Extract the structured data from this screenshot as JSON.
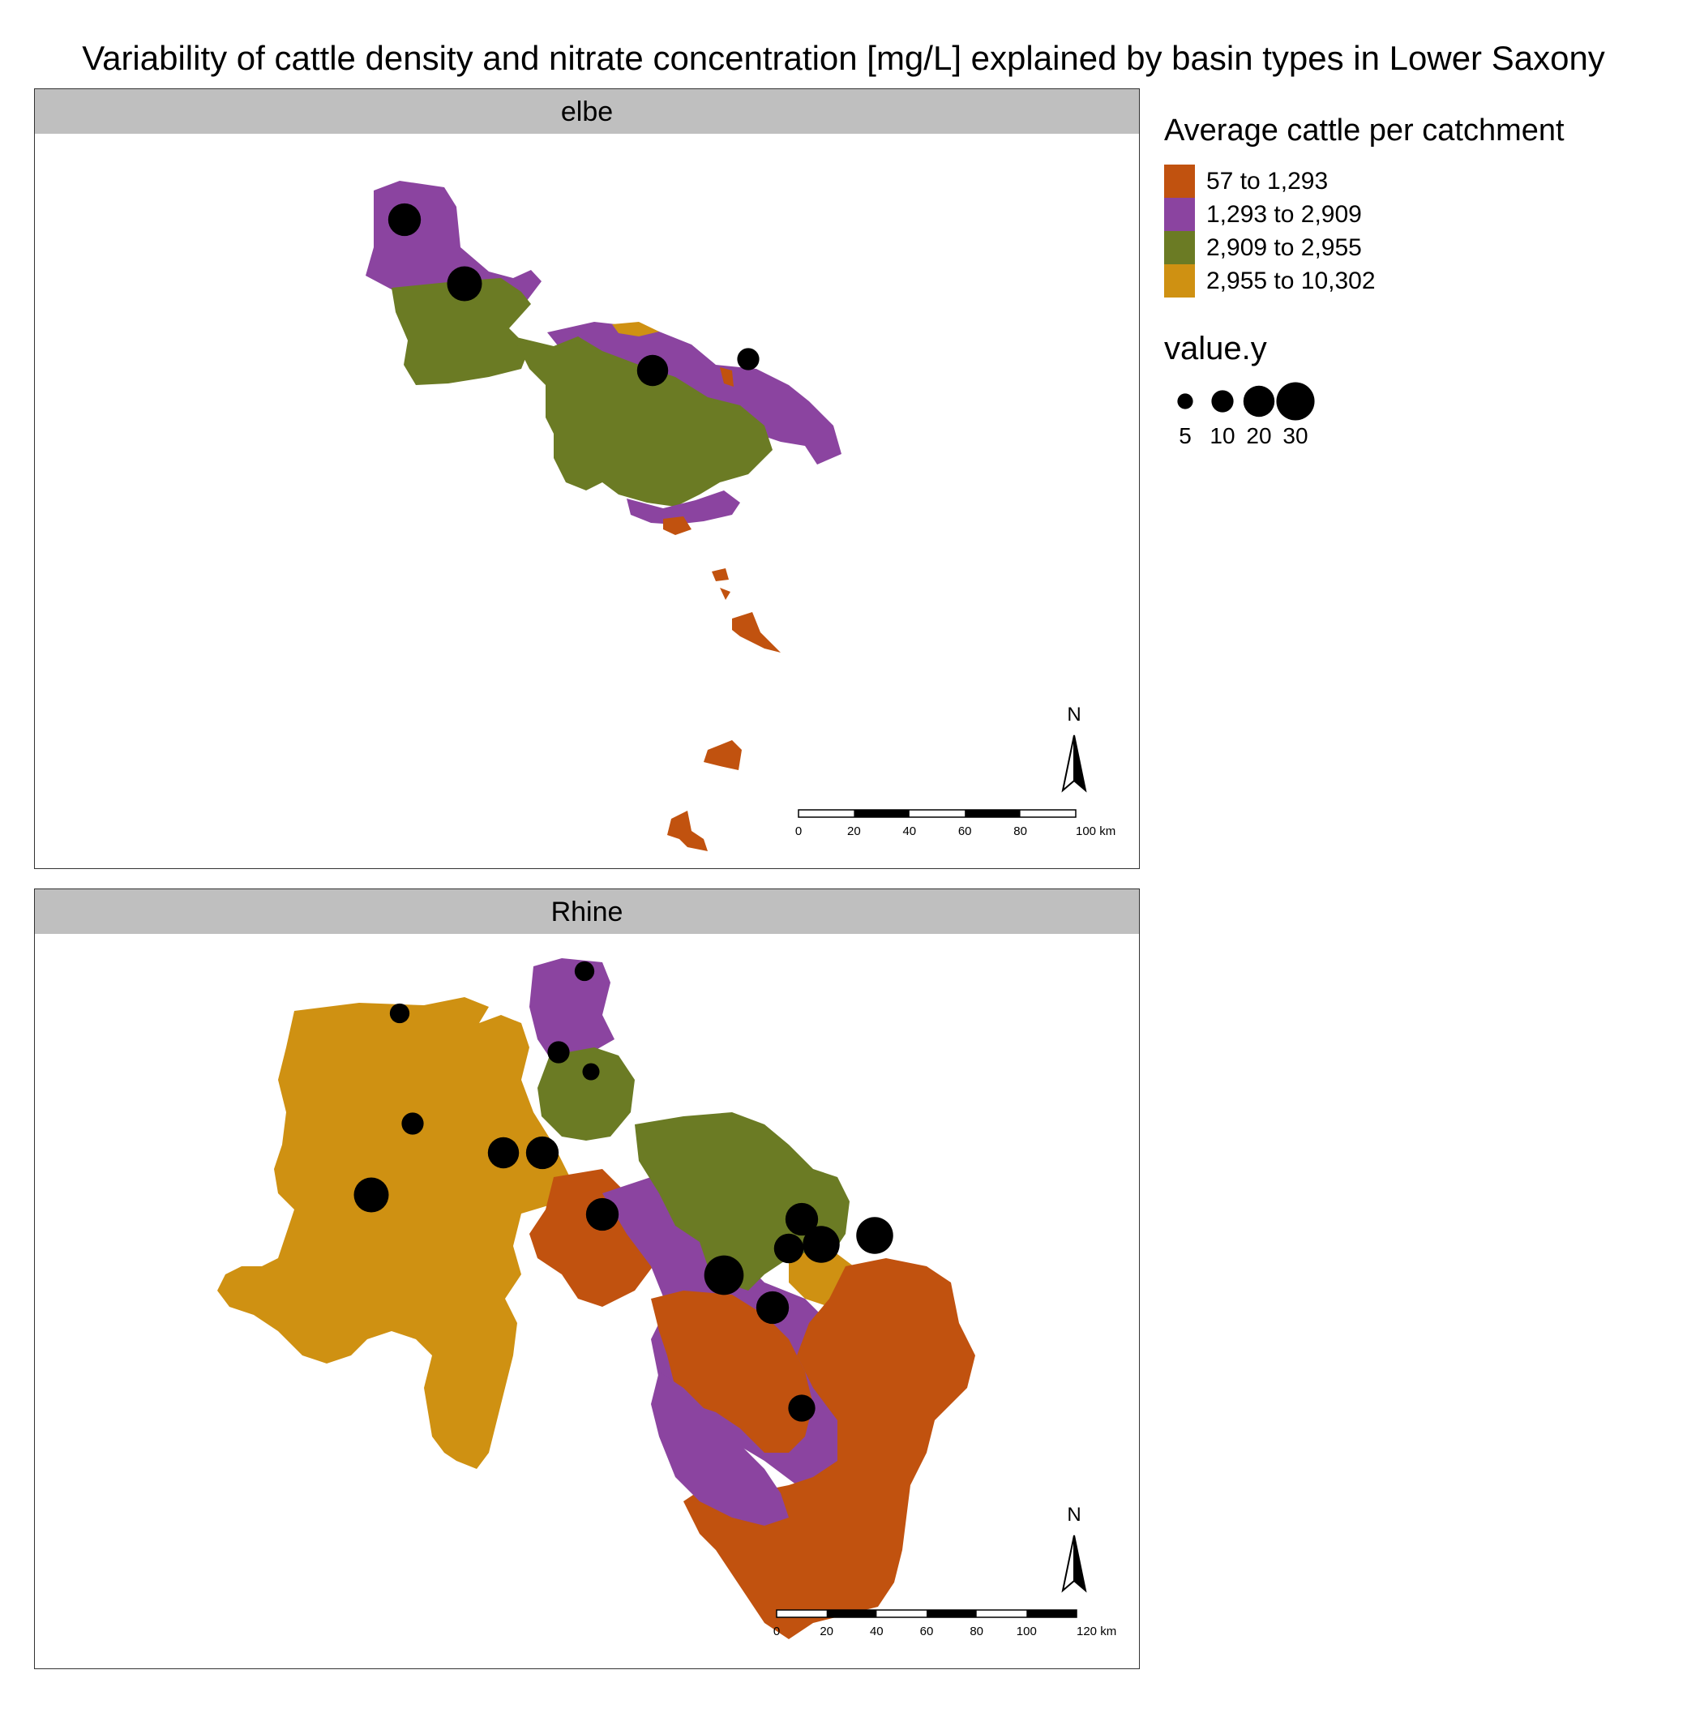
{
  "title": "Variability of cattle density and nitrate concentration [mg/L] explained by basin types in Lower Saxony",
  "colors": {
    "c1": "#c1520f",
    "c2": "#8b44a0",
    "c3": "#6b7b24",
    "c4": "#cf9112",
    "strip": "#bfbfbf"
  },
  "legend": {
    "fill_title": "Average cattle per catchment",
    "classes": [
      {
        "label": "57 to 1,293",
        "color": "#c1520f"
      },
      {
        "label": "1,293 to 2,909",
        "color": "#8b44a0"
      },
      {
        "label": "2,909 to 2,955",
        "color": "#6b7b24"
      },
      {
        "label": "2,955 to 10,302",
        "color": "#cf9112"
      }
    ],
    "size_title": "value.y",
    "sizes": [
      {
        "label": "5",
        "value": 5
      },
      {
        "label": "10",
        "value": 10
      },
      {
        "label": "20",
        "value": 20
      },
      {
        "label": "30",
        "value": 30
      }
    ]
  },
  "panels": [
    {
      "label": "elbe",
      "north_label": "N",
      "scalebar": {
        "ticks": [
          "0",
          "20",
          "40",
          "60",
          "80",
          "100 km"
        ]
      },
      "points": [
        {
          "value": 22
        },
        {
          "value": 25
        },
        {
          "value": 20
        },
        {
          "value": 10
        }
      ]
    },
    {
      "label": "Rhine",
      "north_label": "N",
      "scalebar": {
        "ticks": [
          "0",
          "20",
          "40",
          "60",
          "80",
          "100",
          "120 km"
        ]
      },
      "points": [
        {
          "value": 8
        },
        {
          "value": 8
        },
        {
          "value": 10
        },
        {
          "value": 6
        },
        {
          "value": 10
        },
        {
          "value": 20
        },
        {
          "value": 22
        },
        {
          "value": 25
        },
        {
          "value": 22
        },
        {
          "value": 22
        },
        {
          "value": 28
        },
        {
          "value": 18
        },
        {
          "value": 28
        },
        {
          "value": 32
        },
        {
          "value": 22
        },
        {
          "value": 15
        }
      ]
    }
  ]
}
